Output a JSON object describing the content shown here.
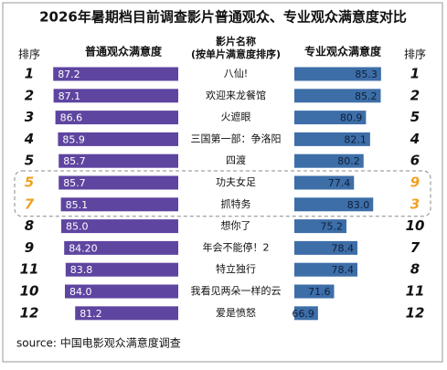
{
  "chart_data": {
    "type": "butterfly",
    "title": "2026年暑期档目前调查影片普通观众、专业观众满意度对比",
    "left_rank_header": "排序",
    "right_rank_header": "排序",
    "category_header": [
      "影片名称",
      "(按单片满意度排序)"
    ],
    "categories": [
      "八仙!",
      "欢迎来龙餐馆",
      "火遮眼",
      "三国第一部：争洛阳",
      "四渡",
      "功夫女足",
      "抓特务",
      "想你了",
      "年会不能停！2",
      "特立独行",
      "我看见两朵一样的云",
      "爱是愤怒"
    ],
    "left_ranks": [
      1,
      2,
      3,
      4,
      5,
      5,
      7,
      8,
      9,
      11,
      10,
      12
    ],
    "right_ranks": [
      1,
      2,
      5,
      4,
      6,
      9,
      3,
      10,
      7,
      8,
      11,
      12
    ],
    "series": [
      {
        "name": "普通观众满意度",
        "color": "#5e45a0",
        "xlim": [
          53,
          88
        ],
        "values": [
          87.2,
          87.1,
          86.6,
          85.9,
          85.7,
          85.7,
          85.1,
          85.0,
          84.2,
          83.8,
          84.0,
          81.2
        ],
        "value_labels": [
          "87.2",
          "87.1",
          "86.6",
          "85.9",
          "85.7",
          "85.7",
          "85.1",
          "85.0",
          "84.20",
          "83.8",
          "84.0",
          "81.2"
        ]
      },
      {
        "name": "专业观众满意度",
        "color": "#3d6ea8",
        "xlim": [
          60,
          88
        ],
        "values": [
          85.3,
          85.2,
          80.9,
          82.1,
          80.2,
          77.4,
          83.0,
          75.2,
          78.4,
          78.4,
          71.6,
          66.9
        ],
        "value_labels": [
          "85.3",
          "85.2",
          "80.9",
          "82.1",
          "80.2",
          "77.4",
          "83.0",
          "75.2",
          "78.4",
          "78.4",
          "71.6",
          "66.9"
        ]
      }
    ],
    "highlight": [
      5,
      6
    ],
    "highlight_color": "#f0a020",
    "source": "source:  中国电影观众满意度调查"
  }
}
